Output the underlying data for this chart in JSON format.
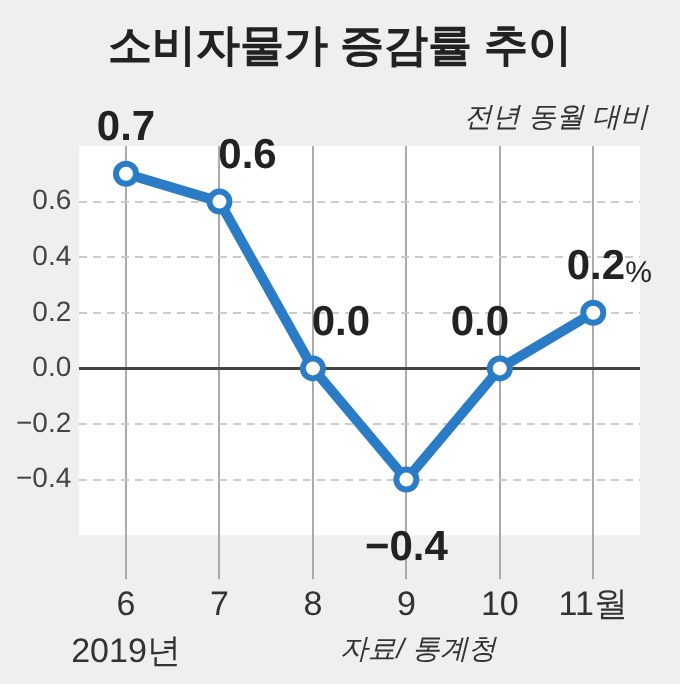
{
  "chart_data": {
    "type": "line",
    "title": "소비자물가 증감률 추이",
    "subtitle": "전년 동월 대비",
    "categories": [
      "6",
      "7",
      "8",
      "9",
      "10",
      "11월"
    ],
    "series": [
      {
        "color": "#2a7cc6",
        "values": [
          0.7,
          0.6,
          0.0,
          -0.4,
          0.0,
          0.2
        ],
        "value_labels": [
          "0.7",
          "0.6",
          "0.0",
          "−0.4",
          "0.0",
          "0.2%"
        ]
      }
    ],
    "ylim": [
      -0.6,
      0.8
    ],
    "yticks": [
      {
        "value": -0.4,
        "label": "−0.4"
      },
      {
        "value": -0.2,
        "label": "−0.2"
      },
      {
        "value": 0,
        "label": "0.0"
      },
      {
        "value": 0.2,
        "label": "0.2"
      },
      {
        "value": 0.4,
        "label": "0.4"
      },
      {
        "value": 0.6,
        "label": "0.6"
      }
    ],
    "grid": true,
    "marker": "circle",
    "line_style": "solid",
    "legend": false,
    "annotations": [
      "2019년",
      "자료/ 통계청"
    ]
  }
}
